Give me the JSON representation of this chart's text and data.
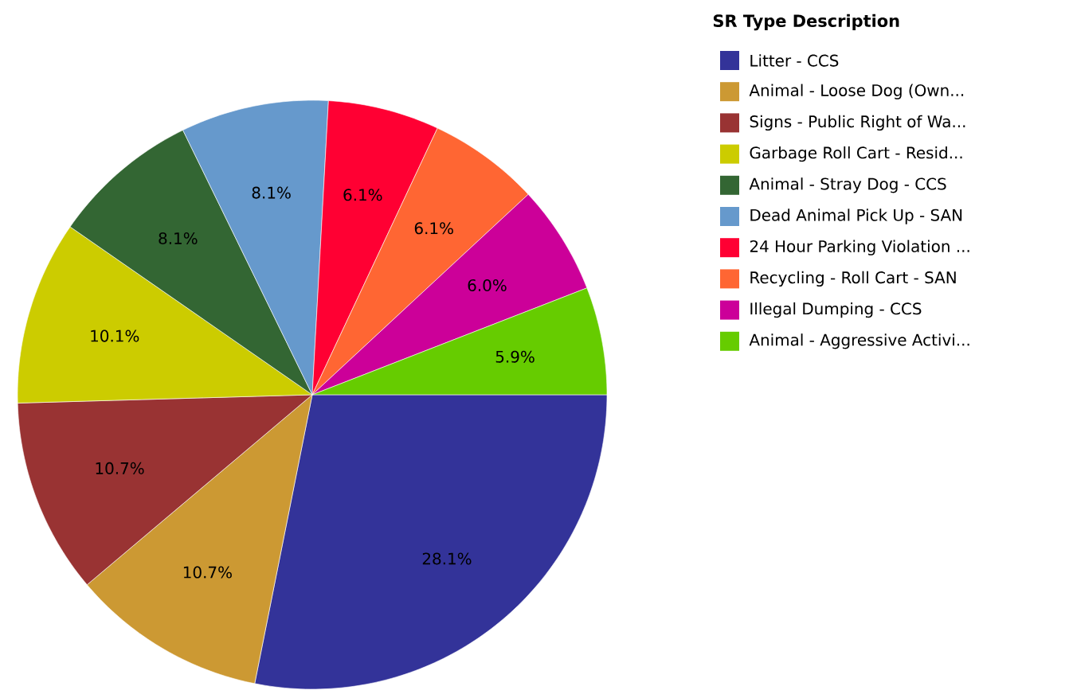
{
  "chart_data": {
    "type": "pie",
    "legend_title": "SR Type Description",
    "categories": [
      "Litter -  CCS",
      "Animal - Loose Dog (Own...",
      "Signs - Public Right of Wa...",
      "Garbage Roll Cart - Resid...",
      "Animal - Stray Dog - CCS",
      "Dead Animal Pick Up - SAN",
      "24 Hour Parking Violation ...",
      "Recycling - Roll Cart - SAN",
      "Illegal Dumping - CCS",
      "Animal - Aggressive Activi..."
    ],
    "values": [
      28.1,
      10.7,
      10.7,
      10.1,
      8.1,
      8.1,
      6.1,
      6.1,
      6.0,
      5.9
    ],
    "value_labels": [
      "28.1%",
      "10.7%",
      "10.7%",
      "10.1%",
      "8.1%",
      "8.1%",
      "6.1%",
      "6.1%",
      "6.0%",
      "5.9%"
    ],
    "colors": [
      "#333399",
      "#cc9933",
      "#993333",
      "#cccc00",
      "#336633",
      "#6699cc",
      "#ff0033",
      "#ff6633",
      "#cc0099",
      "#66cc00"
    ],
    "legend": "top right"
  }
}
